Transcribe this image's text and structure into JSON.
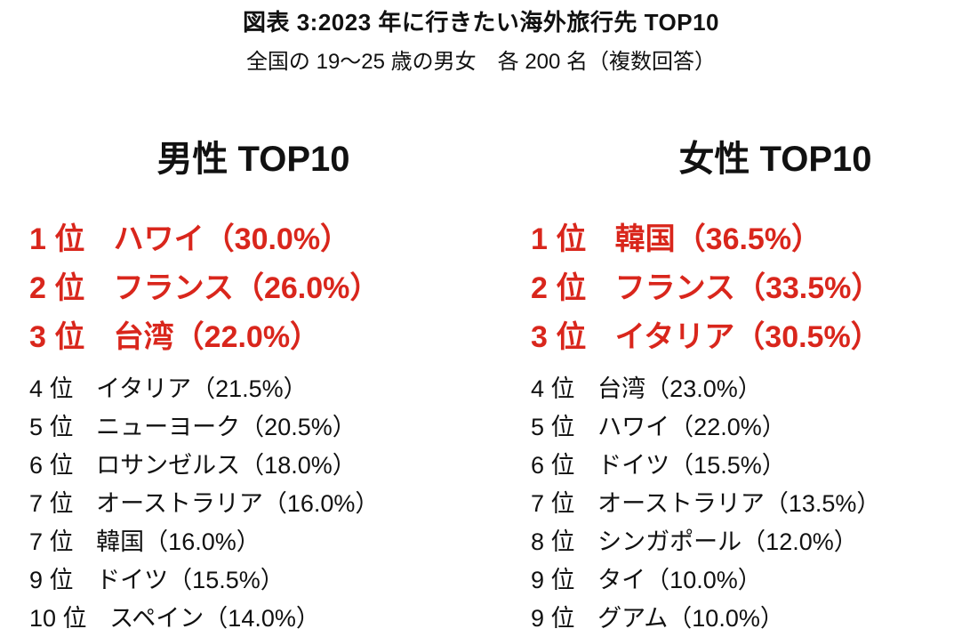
{
  "page": {
    "title": "図表 3:2023 年に行きたい海外旅行先 TOP10",
    "subtitle": "全国の 19～25 歳の男女　各 200 名（複数回答）"
  },
  "colors": {
    "highlight_red": "#d9261c",
    "text_black": "#111111",
    "background": "#ffffff"
  },
  "lists": {
    "male": {
      "header": "男性 TOP10",
      "items": [
        {
          "rank": "1 位",
          "text": "ハワイ（30.0%）",
          "highlight": true
        },
        {
          "rank": "2 位",
          "text": "フランス（26.0%）",
          "highlight": true
        },
        {
          "rank": "3 位",
          "text": "台湾（22.0%）",
          "highlight": true
        },
        {
          "rank": "4 位",
          "text": "イタリア（21.5%）",
          "highlight": false
        },
        {
          "rank": "5 位",
          "text": "ニューヨーク（20.5%）",
          "highlight": false
        },
        {
          "rank": "6 位",
          "text": "ロサンゼルス（18.0%）",
          "highlight": false
        },
        {
          "rank": "7 位",
          "text": "オーストラリア（16.0%）",
          "highlight": false
        },
        {
          "rank": "7 位",
          "text": "韓国（16.0%）",
          "highlight": false
        },
        {
          "rank": "9 位",
          "text": "ドイツ（15.5%）",
          "highlight": false
        },
        {
          "rank": "10 位",
          "text": "スペイン（14.0%）",
          "highlight": false
        }
      ]
    },
    "female": {
      "header": "女性 TOP10",
      "items": [
        {
          "rank": "1 位",
          "text": "韓国（36.5%）",
          "highlight": true
        },
        {
          "rank": "2 位",
          "text": "フランス（33.5%）",
          "highlight": true
        },
        {
          "rank": "3 位",
          "text": "イタリア（30.5%）",
          "highlight": true
        },
        {
          "rank": "4 位",
          "text": "台湾（23.0%）",
          "highlight": false
        },
        {
          "rank": "5 位",
          "text": "ハワイ（22.0%）",
          "highlight": false
        },
        {
          "rank": "6 位",
          "text": "ドイツ（15.5%）",
          "highlight": false
        },
        {
          "rank": "7 位",
          "text": "オーストラリア（13.5%）",
          "highlight": false
        },
        {
          "rank": "8 位",
          "text": "シンガポール（12.0%）",
          "highlight": false
        },
        {
          "rank": "9 位",
          "text": "タイ（10.0%）",
          "highlight": false
        },
        {
          "rank": "9 位",
          "text": "グアム（10.0%）",
          "highlight": false
        }
      ]
    }
  },
  "chart_data": [
    {
      "type": "table",
      "title": "図表 3:2023 年に行きたい海外旅行先 TOP10",
      "subtitle": "全国の 19～25 歳の男女 各 200 名（複数回答）",
      "group": "男性 TOP10",
      "columns": [
        "rank",
        "destination",
        "percent"
      ],
      "rows": [
        [
          1,
          "ハワイ",
          30.0
        ],
        [
          2,
          "フランス",
          26.0
        ],
        [
          3,
          "台湾",
          22.0
        ],
        [
          4,
          "イタリア",
          21.5
        ],
        [
          5,
          "ニューヨーク",
          20.5
        ],
        [
          6,
          "ロサンゼルス",
          18.0
        ],
        [
          7,
          "オーストラリア",
          16.0
        ],
        [
          7,
          "韓国",
          16.0
        ],
        [
          9,
          "ドイツ",
          15.5
        ],
        [
          10,
          "スペイン",
          14.0
        ]
      ]
    },
    {
      "type": "table",
      "title": "図表 3:2023 年に行きたい海外旅行先 TOP10",
      "subtitle": "全国の 19～25 歳の男女 各 200 名（複数回答）",
      "group": "女性 TOP10",
      "columns": [
        "rank",
        "destination",
        "percent"
      ],
      "rows": [
        [
          1,
          "韓国",
          36.5
        ],
        [
          2,
          "フランス",
          33.5
        ],
        [
          3,
          "イタリア",
          30.5
        ],
        [
          4,
          "台湾",
          23.0
        ],
        [
          5,
          "ハワイ",
          22.0
        ],
        [
          6,
          "ドイツ",
          15.5
        ],
        [
          7,
          "オーストラリア",
          13.5
        ],
        [
          8,
          "シンガポール",
          12.0
        ],
        [
          9,
          "タイ",
          10.0
        ],
        [
          9,
          "グアム",
          10.0
        ]
      ]
    }
  ]
}
